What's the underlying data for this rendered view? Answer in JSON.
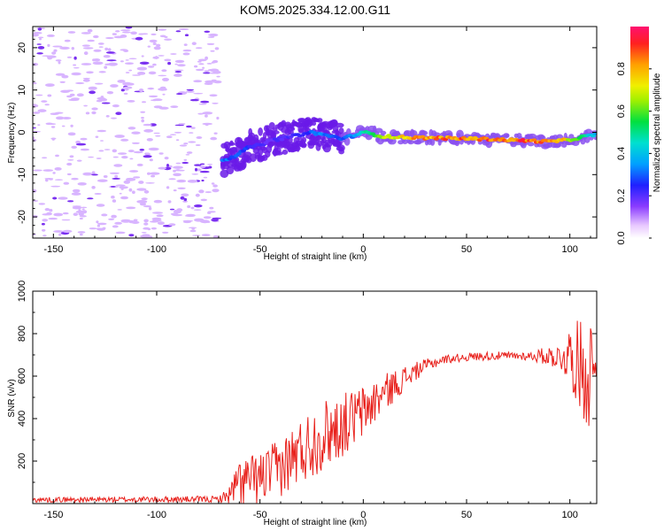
{
  "title": "KOM5.2025.334.12.00.G11",
  "chart_data": [
    {
      "type": "heatmap",
      "title": "KOM5.2025.334.12.00.G11",
      "xlabel": "Height of straight line (km)",
      "ylabel": "Frequency (Hz)",
      "xlim": [
        -160,
        113
      ],
      "ylim": [
        -25,
        25
      ],
      "xticks": [
        -150,
        -100,
        -50,
        0,
        50,
        100
      ],
      "yticks": [
        -20,
        -10,
        0,
        10,
        20
      ],
      "colorbar": {
        "label": "Normalized spectral amplitude",
        "range": [
          0,
          1
        ],
        "ticks": [
          "0.0",
          "0.2",
          "0.4",
          "0.6",
          "0.8"
        ]
      },
      "ridge": {
        "x": [
          -68,
          -64,
          -60,
          -55,
          -50,
          -45,
          -40,
          -35,
          -30,
          -25,
          -20,
          -15,
          -10,
          -5,
          0,
          10,
          20,
          30,
          40,
          50,
          60,
          70,
          80,
          90,
          95,
          100,
          105,
          110,
          113
        ],
        "y": [
          -6.5,
          -6.0,
          -5.0,
          -3.5,
          -3.0,
          -2.0,
          -1.5,
          -1.0,
          -0.5,
          0.0,
          -0.5,
          -1.0,
          -1.5,
          -0.8,
          0.0,
          -1.0,
          -1.2,
          -1.3,
          -1.4,
          -1.5,
          -1.6,
          -1.8,
          -2.0,
          -2.2,
          -2.0,
          -1.8,
          -1.2,
          -0.8,
          -0.5
        ],
        "amp": [
          0.35,
          0.3,
          0.3,
          0.25,
          0.22,
          0.2,
          0.22,
          0.22,
          0.25,
          0.3,
          0.35,
          0.3,
          0.3,
          0.35,
          0.45,
          0.7,
          0.8,
          0.85,
          0.88,
          0.9,
          0.9,
          0.9,
          0.92,
          0.9,
          0.85,
          0.7,
          0.55,
          0.45,
          0.4
        ]
      },
      "noise_region_xlim": [
        -160,
        -70
      ]
    },
    {
      "type": "line",
      "xlabel": "Height of straight line (km)",
      "ylabel": "SNR (v/v)",
      "xlim": [
        -160,
        113
      ],
      "ylim": [
        0,
        1000
      ],
      "xticks": [
        -150,
        -100,
        -50,
        0,
        50,
        100
      ],
      "yticks": [
        200,
        400,
        600,
        800,
        1000
      ],
      "line_color": "#e8211c",
      "trend": {
        "x": [
          -160,
          -70,
          -65,
          -60,
          -50,
          -40,
          -30,
          -20,
          -10,
          0,
          10,
          20,
          30,
          40,
          50,
          60,
          70,
          80,
          90,
          95,
          100,
          105,
          110,
          113
        ],
        "y": [
          18,
          20,
          40,
          100,
          120,
          170,
          250,
          320,
          370,
          430,
          520,
          590,
          650,
          680,
          690,
          695,
          695,
          695,
          695,
          690,
          700,
          650,
          620,
          680
        ]
      },
      "spread": {
        "x": [
          -160,
          -70,
          -65,
          -60,
          -50,
          -40,
          -30,
          -20,
          -10,
          0,
          10,
          20,
          30,
          40,
          80,
          95,
          100,
          105,
          110,
          113
        ],
        "y": [
          12,
          15,
          40,
          120,
          120,
          140,
          160,
          170,
          150,
          130,
          90,
          60,
          30,
          20,
          20,
          60,
          140,
          220,
          300,
          60
        ]
      }
    }
  ]
}
